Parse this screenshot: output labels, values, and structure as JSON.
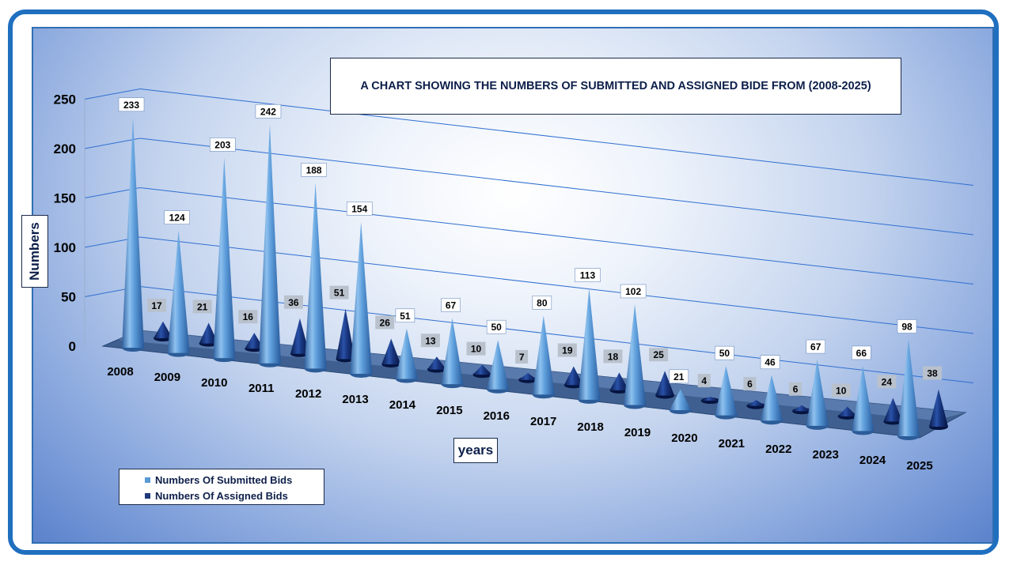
{
  "chart_data": {
    "type": "bar",
    "shape": "cone",
    "title": "A CHART SHOWING THE  NUMBERS OF SUBMITTED AND ASSIGNED BIDE FROM (2008-2025)",
    "xlabel": "years",
    "ylabel": "Numbers",
    "ylim": [
      0,
      250
    ],
    "yticks": [
      "0",
      "50",
      "100",
      "150",
      "200",
      "250"
    ],
    "categories": [
      "2008",
      "2009",
      "2010",
      "2011",
      "2012",
      "2013",
      "2014",
      "2015",
      "2016",
      "2017",
      "2018",
      "2019",
      "2020",
      "2021",
      "2022",
      "2023",
      "2024",
      "2025"
    ],
    "series": [
      {
        "name": "Numbers Of Submitted Bids",
        "color": "#5b9bd5",
        "values": [
          233,
          124,
          203,
          242,
          188,
          154,
          51,
          67,
          50,
          80,
          113,
          102,
          21,
          50,
          46,
          67,
          66,
          98
        ]
      },
      {
        "name": "Numbers Of Assigned Bids",
        "color": "#1f3a7a",
        "values": [
          17,
          21,
          16,
          36,
          51,
          26,
          13,
          10,
          7,
          19,
          18,
          25,
          4,
          6,
          6,
          10,
          24,
          38
        ]
      }
    ],
    "legend_position": "bottom-left",
    "grid": true
  }
}
